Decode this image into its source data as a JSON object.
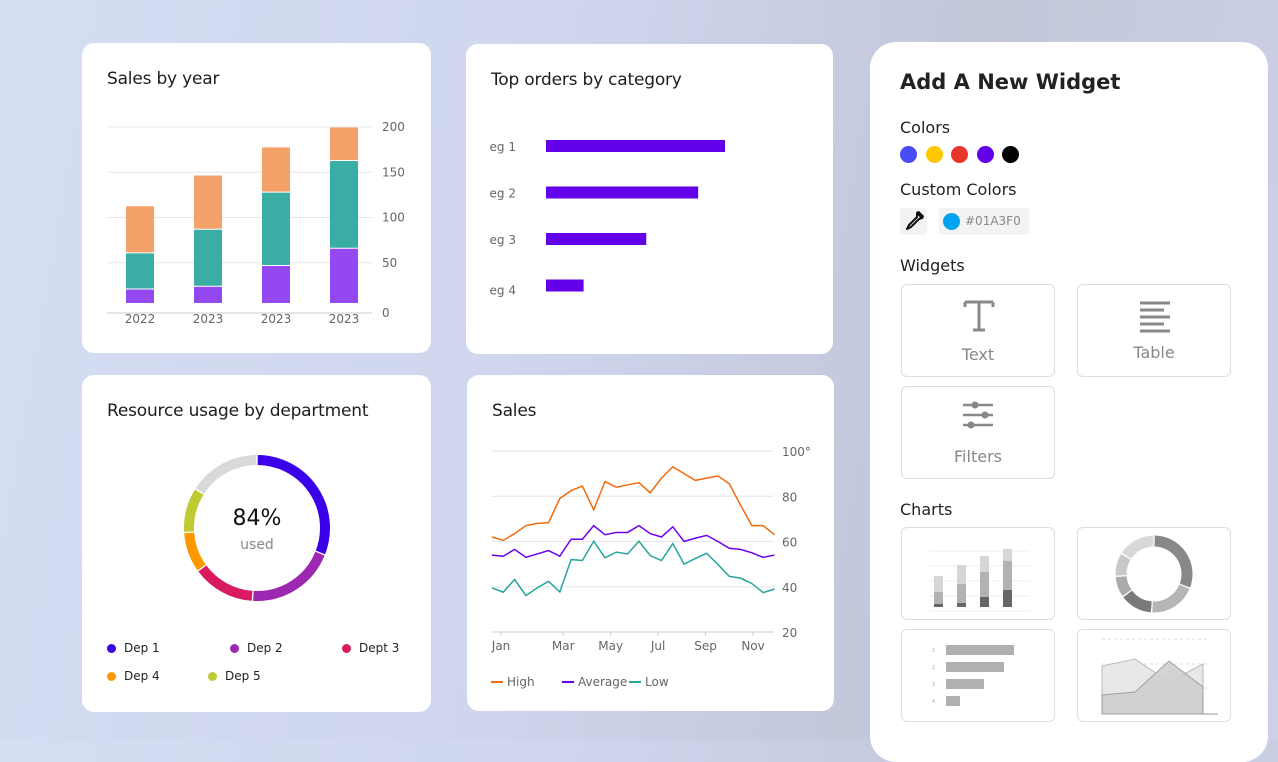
{
  "cards": {
    "sales_by_year": {
      "title": "Sales by year"
    },
    "top_orders": {
      "title": "Top orders by category"
    },
    "resource": {
      "title": "Resource usage by department",
      "center_value": "84%",
      "center_label": "used"
    },
    "sales": {
      "title": "Sales"
    }
  },
  "chart_data": [
    {
      "type": "bar",
      "stacked": true,
      "title": "Sales by year",
      "categories": [
        "2022",
        "2023",
        "2023",
        "2023"
      ],
      "series": [
        {
          "values": [
            16,
            19,
            42,
            61
          ],
          "color": "#9448f0"
        },
        {
          "values": [
            40,
            63,
            81,
            97
          ],
          "color": "#3aaea4"
        },
        {
          "values": [
            52,
            60,
            50,
            37
          ],
          "color": "#f5a26a"
        }
      ],
      "ylim": [
        0,
        200
      ],
      "yticks": [
        "0",
        "50",
        "100",
        "150",
        "200"
      ],
      "grid": true
    },
    {
      "type": "bar",
      "orientation": "horizontal",
      "title": "Top orders by category",
      "categories": [
        "eg 1",
        "eg 2",
        "eg 3",
        "eg 4"
      ],
      "values": [
        100,
        85,
        56,
        21
      ],
      "color": "#6200ea"
    },
    {
      "type": "pie",
      "donut": true,
      "title": "Resource usage by department",
      "slices": [
        {
          "label": "Dep 1",
          "value": 31,
          "color": "#3a00ea"
        },
        {
          "label": "Dep 2",
          "value": 20,
          "color": "#9c27b0"
        },
        {
          "label": "Dept 3",
          "value": 14,
          "color": "#d81b60"
        },
        {
          "label": "Dep 4",
          "value": 9,
          "color": "#ff9800"
        },
        {
          "label": "Dep 5",
          "value": 10,
          "color": "#c0ca33"
        }
      ],
      "remainder": {
        "value": 16,
        "color": "#d9d9d9"
      }
    },
    {
      "type": "line",
      "title": "Sales",
      "x": [
        0,
        1,
        2,
        3,
        4,
        5,
        6,
        7,
        8,
        9,
        10,
        11,
        12,
        13,
        14,
        15,
        16,
        17,
        18,
        19,
        20,
        21,
        22,
        23,
        24,
        25
      ],
      "xticks": [
        {
          "label": "Jan",
          "at": 0.8
        },
        {
          "label": "Mar",
          "at": 6.3
        },
        {
          "label": "May",
          "at": 10.5
        },
        {
          "label": "Jul",
          "at": 14.7
        },
        {
          "label": "Sep",
          "at": 18.9
        },
        {
          "label": "Nov",
          "at": 23.1
        }
      ],
      "yticks": [
        "20",
        "40",
        "60",
        "80",
        "100°"
      ],
      "ylim": [
        20,
        100
      ],
      "grid": true,
      "legend": "bottom",
      "series": [
        {
          "name": "High",
          "color": "#f26b0f",
          "values": [
            62,
            60.5,
            63.5,
            67,
            68,
            68.3,
            79,
            82.5,
            84.5,
            74,
            86.5,
            84,
            85,
            86,
            81.5,
            88,
            93,
            90,
            87,
            88,
            89,
            85.5,
            76,
            67,
            67,
            63
          ]
        },
        {
          "name": "Average",
          "color": "#6b00f0",
          "values": [
            54,
            53.5,
            56.5,
            53,
            54.5,
            56,
            53.5,
            61,
            61,
            67,
            63,
            64,
            64,
            67,
            63.5,
            62,
            66.5,
            60,
            61.5,
            62.7,
            60,
            57,
            56.5,
            55,
            53,
            54
          ]
        },
        {
          "name": "Low",
          "color": "#26a69a",
          "values": [
            39.5,
            37.6,
            43.2,
            36.1,
            39.5,
            42.4,
            37.7,
            52,
            51.6,
            60.1,
            52.8,
            55.3,
            54.5,
            60.1,
            53.8,
            51.6,
            59.1,
            50,
            52.5,
            54.8,
            49.8,
            44.6,
            43.8,
            41.4,
            37.4,
            39
          ]
        }
      ]
    }
  ],
  "panel": {
    "title": "Add A New Widget",
    "colors_label": "Colors",
    "colors": [
      "#4a4cf5",
      "#ffc800",
      "#e8352b",
      "#6200ea",
      "#000000"
    ],
    "custom_colors_label": "Custom Colors",
    "custom_color": {
      "value": "#01A3F0",
      "swatch": "#01a3f0",
      "icon": "eyedropper-icon"
    },
    "widgets_label": "Widgets",
    "widgets": [
      {
        "label": "Text",
        "icon": "text-icon"
      },
      {
        "label": "Table",
        "icon": "table-icon"
      },
      {
        "label": "Filters",
        "icon": "filters-icon"
      }
    ],
    "charts_label": "Charts",
    "chart_thumbs": [
      "stacked-bar-chart-icon",
      "donut-chart-icon",
      "horizontal-bar-chart-icon",
      "area-chart-icon"
    ],
    "thumb_bar_labels": [
      "1",
      "2",
      "3",
      "4"
    ]
  }
}
